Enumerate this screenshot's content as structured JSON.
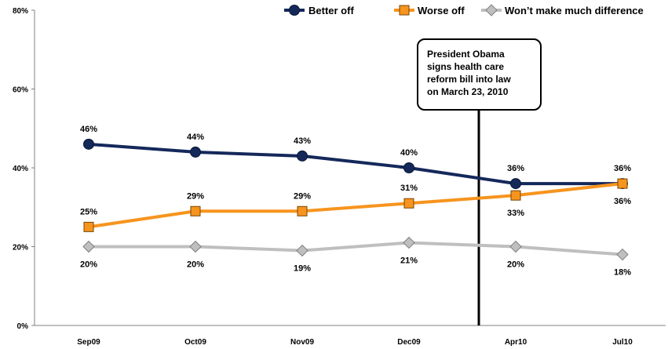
{
  "chart_data": {
    "type": "line",
    "title": "",
    "xlabel": "",
    "ylabel": "",
    "categories": [
      "Sep09",
      "Oct09",
      "Nov09",
      "Dec09",
      "Apr10",
      "Jul10"
    ],
    "ylim": [
      0,
      80
    ],
    "yticks": [
      0,
      20,
      40,
      60,
      80
    ],
    "ytick_labels": [
      "0%",
      "20%",
      "40%",
      "60%",
      "80%"
    ],
    "grid": false,
    "legend_position": "top-right",
    "series": [
      {
        "name": "Better off",
        "values": [
          46,
          44,
          43,
          40,
          36,
          36
        ],
        "labels": [
          "46%",
          "44%",
          "43%",
          "40%",
          "36%",
          "36%"
        ],
        "color": "#14285a",
        "marker": "circle",
        "label_pos": "above"
      },
      {
        "name": "Worse off",
        "values": [
          25,
          29,
          29,
          31,
          33,
          36
        ],
        "labels": [
          "25%",
          "29%",
          "29%",
          "31%",
          "33%",
          "36%"
        ],
        "color": "#f7941e",
        "marker": "square",
        "label_pos": [
          "above",
          "above",
          "above",
          "above",
          "below",
          "below"
        ]
      },
      {
        "name": "Won’t make much difference",
        "values": [
          20,
          20,
          19,
          21,
          20,
          18
        ],
        "labels": [
          "20%",
          "20%",
          "19%",
          "21%",
          "20%",
          "18%"
        ],
        "color": "#bfbfbf",
        "marker": "diamond",
        "label_pos": "below"
      }
    ],
    "annotation": {
      "lines": [
        "President Obama",
        "signs health care",
        "reform bill into law",
        "on March 23, 2010"
      ],
      "date": "2010-03-23"
    }
  }
}
